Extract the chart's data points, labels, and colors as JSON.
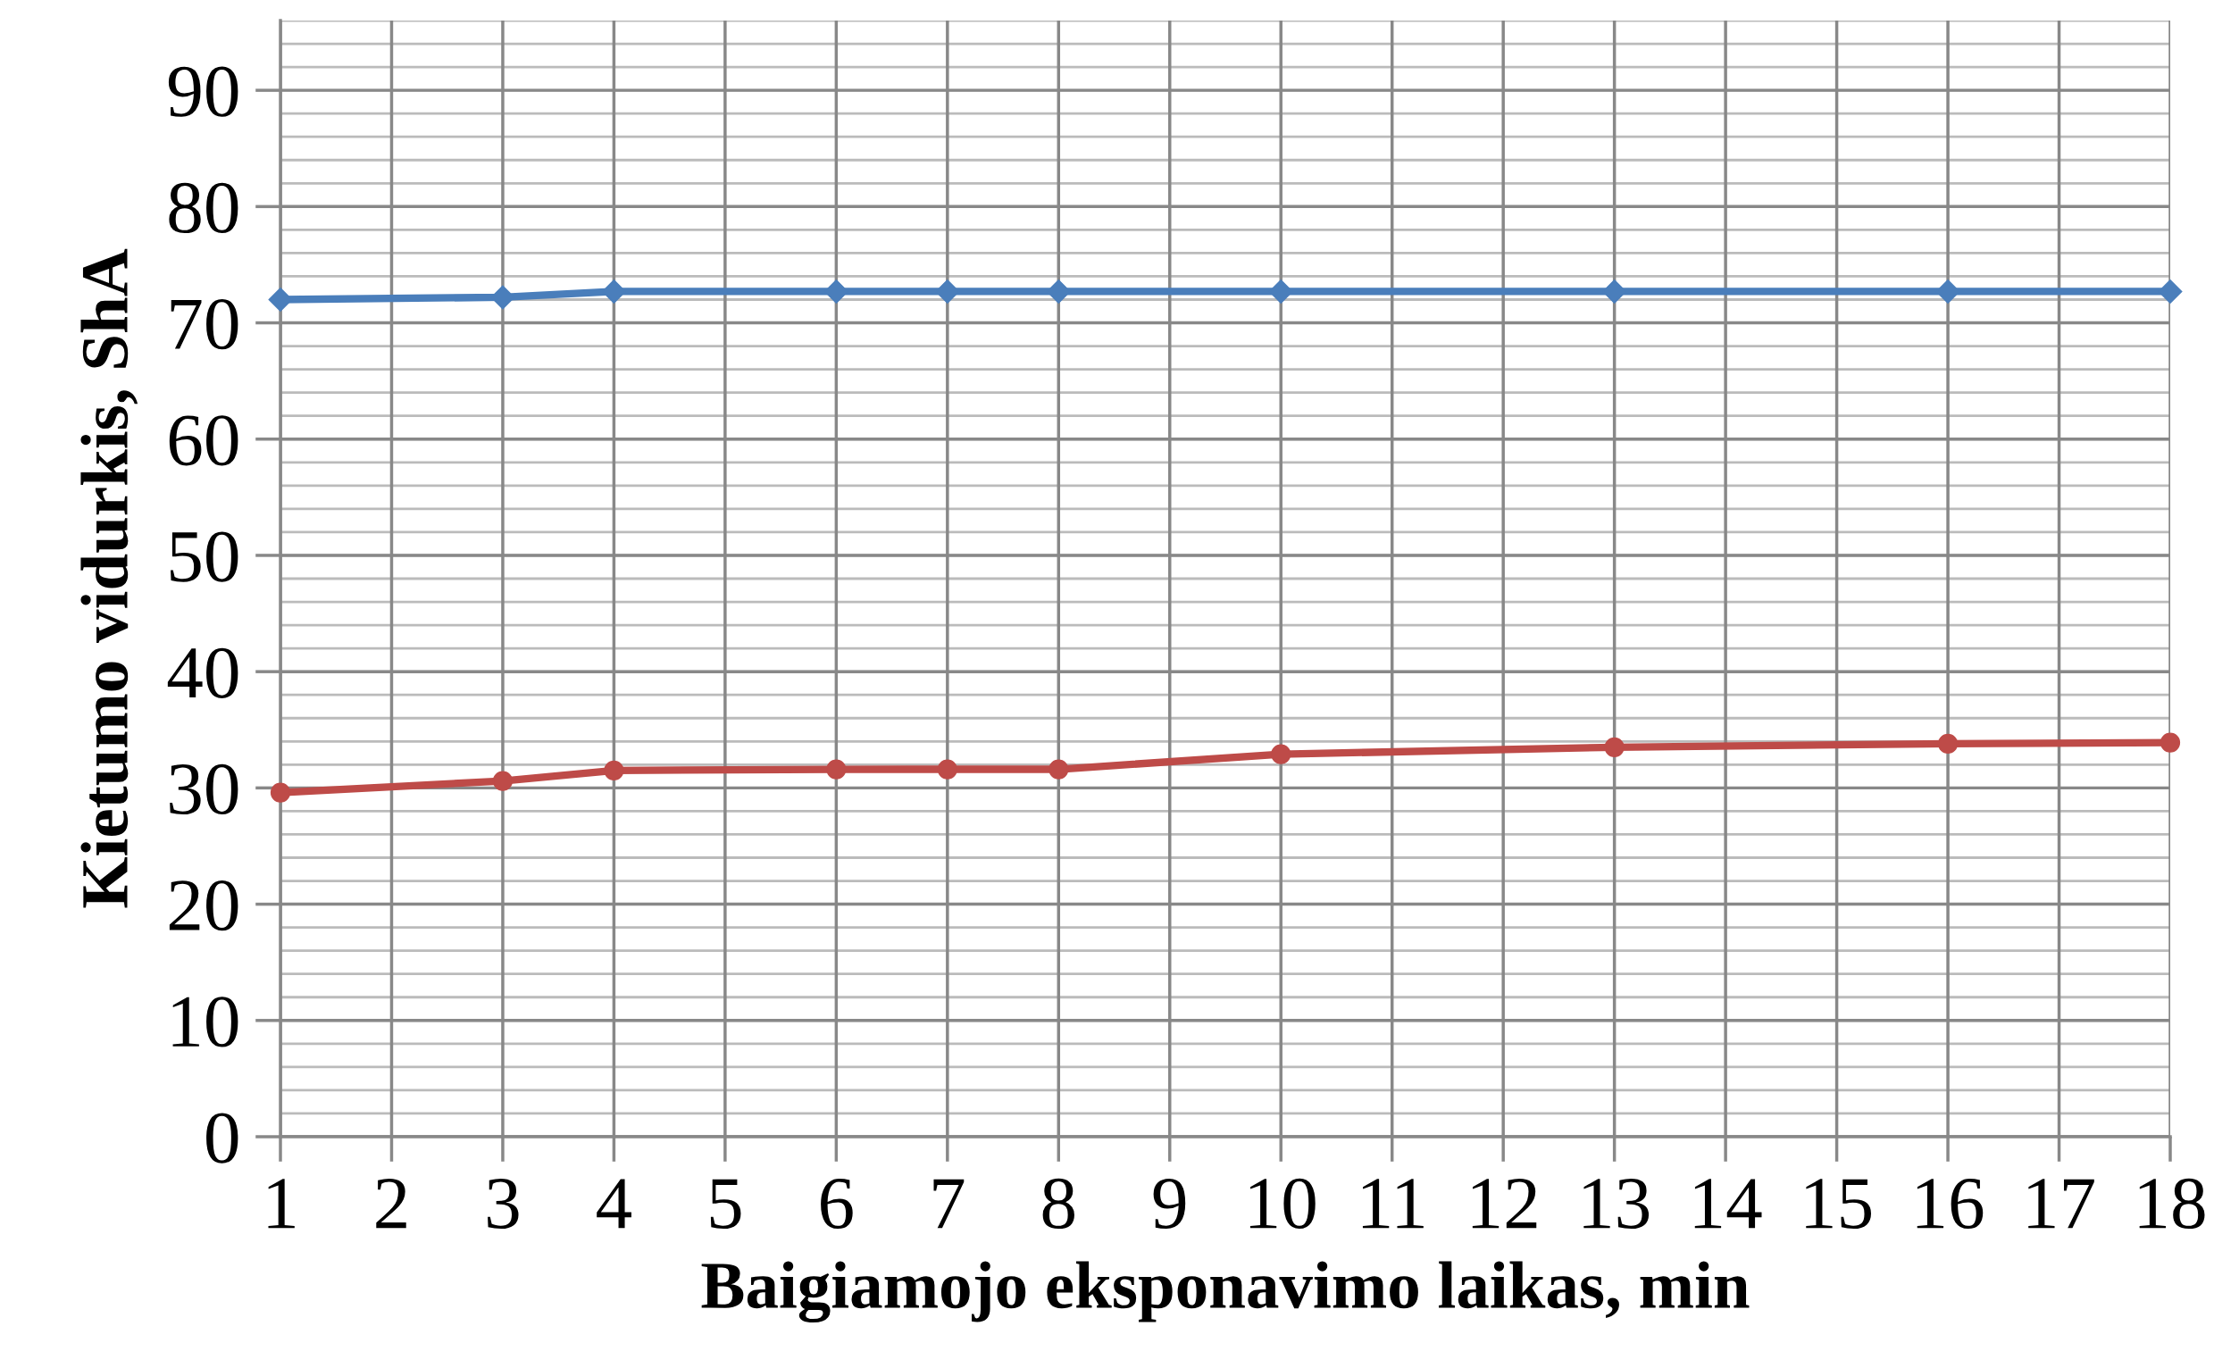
{
  "chart_data": {
    "type": "line",
    "xlabel": "Baigiamojo eksponavimo laikas, min",
    "ylabel": "Kietumo vidurkis, ShA",
    "x": [
      1,
      3,
      4,
      6,
      7,
      8,
      10,
      13,
      16,
      18
    ],
    "series": [
      {
        "color": "#4a7ebb",
        "marker": "diamond",
        "values": [
          72.0,
          72.2,
          72.7,
          72.7,
          72.7,
          72.7,
          72.7,
          72.7,
          72.7,
          72.7
        ]
      },
      {
        "color": "#be4b48",
        "marker": "circle",
        "values": [
          29.6,
          30.6,
          31.5,
          31.6,
          31.6,
          31.6,
          32.9,
          33.5,
          33.8,
          33.9
        ]
      }
    ],
    "xlim": [
      1,
      18
    ],
    "xticks": [
      1,
      2,
      3,
      4,
      5,
      6,
      7,
      8,
      9,
      10,
      11,
      12,
      13,
      14,
      15,
      16,
      17,
      18
    ],
    "ylim": [
      0,
      96
    ],
    "yticks": [
      0,
      10,
      20,
      30,
      40,
      50,
      60,
      70,
      80,
      90
    ],
    "grid": true,
    "legend": false
  }
}
